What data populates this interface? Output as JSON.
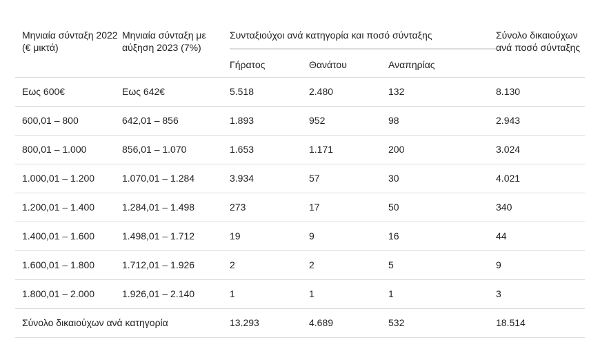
{
  "table": {
    "headers": {
      "col1": "Μηνιαία σύνταξη 2022 (€ μικτά)",
      "col2": "Μηνιαία σύνταξη με αύξηση 2023 (7%)",
      "group": "Συνταξιούχοι ανά κατηγορία και ποσό σύνταξης",
      "sub_old_age": "Γήρατος",
      "sub_death": "Θανάτου",
      "sub_disability": "Αναπηρίας",
      "total": "Σύνολο δικαιούχων ανά ποσό σύνταξης"
    },
    "rows": [
      {
        "r2022": "Εως 600€",
        "r2023": "Εως 642€",
        "old_age": "5.518",
        "death": "2.480",
        "disability": "132",
        "total": "8.130"
      },
      {
        "r2022": "600,01 – 800",
        "r2023": "642,01 – 856",
        "old_age": "1.893",
        "death": "952",
        "disability": "98",
        "total": "2.943"
      },
      {
        "r2022": "800,01 – 1.000",
        "r2023": "856,01 – 1.070",
        "old_age": "1.653",
        "death": "1.171",
        "disability": "200",
        "total": "3.024"
      },
      {
        "r2022": "1.000,01 – 1.200",
        "r2023": "1.070,01 – 1.284",
        "old_age": "3.934",
        "death": "57",
        "disability": "30",
        "total": "4.021"
      },
      {
        "r2022": "1.200,01 – 1.400",
        "r2023": "1.284,01 – 1.498",
        "old_age": "273",
        "death": "17",
        "disability": "50",
        "total": "340"
      },
      {
        "r2022": "1.400,01 – 1.600",
        "r2023": "1.498,01 – 1.712",
        "old_age": "19",
        "death": "9",
        "disability": "16",
        "total": "44"
      },
      {
        "r2022": "1.600,01 – 1.800",
        "r2023": "1.712,01 – 1.926",
        "old_age": "2",
        "death": "2",
        "disability": "5",
        "total": "9"
      },
      {
        "r2022": "1.800,01 – 2.000",
        "r2023": "1.926,01 – 2.140",
        "old_age": "1",
        "death": "1",
        "disability": "1",
        "total": "3"
      }
    ],
    "totals_row": {
      "label": "Σύνολο δικαιούχων ανά κατηγορία",
      "old_age": "13.293",
      "death": "4.689",
      "disability": "532",
      "total": "18.514"
    }
  }
}
